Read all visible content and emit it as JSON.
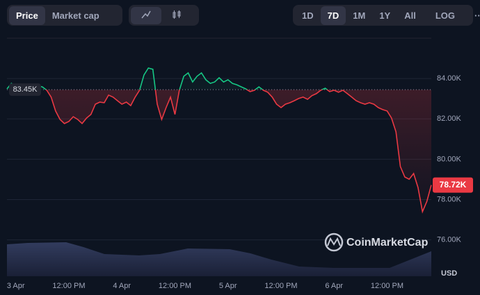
{
  "ui": {
    "tabs": [
      "Price",
      "Market cap"
    ],
    "ranges": [
      "1D",
      "7D",
      "1M",
      "1Y",
      "All"
    ],
    "log": "LOG",
    "more": "···",
    "watermark": "CoinMarketCap",
    "currency": "USD"
  },
  "chart_data": {
    "type": "line",
    "categories": [
      null,
      null,
      "3 Apr",
      null,
      null,
      null,
      null,
      null,
      null,
      null,
      null,
      null,
      null,
      null,
      "12:00 PM",
      null,
      null,
      null,
      null,
      null,
      null,
      null,
      null,
      null,
      null,
      null,
      "4 Apr",
      null,
      null,
      null,
      null,
      null,
      null,
      null,
      null,
      null,
      null,
      null,
      "12:00 PM",
      null,
      null,
      null,
      null,
      null,
      null,
      null,
      null,
      null,
      null,
      null,
      "5 Apr",
      null,
      null,
      null,
      null,
      null,
      null,
      null,
      null,
      null,
      null,
      null,
      "12:00 PM",
      null,
      null,
      null,
      null,
      null,
      null,
      null,
      null,
      null,
      null,
      null,
      "6 Apr",
      null,
      null,
      null,
      null,
      null,
      null,
      null,
      null,
      null,
      null,
      null,
      "12:00 PM",
      null,
      null,
      null,
      null,
      null,
      null,
      null,
      null,
      null,
      null
    ],
    "values": [
      83490,
      83760,
      83590,
      83520,
      83590,
      83520,
      83490,
      83630,
      83590,
      83420,
      83080,
      82390,
      81970,
      81770,
      81870,
      82110,
      81970,
      81770,
      82040,
      82220,
      82730,
      82830,
      82800,
      83180,
      83080,
      82900,
      82730,
      82830,
      82660,
      83080,
      83420,
      84180,
      84520,
      84460,
      82730,
      81970,
      82560,
      83080,
      82220,
      83420,
      84110,
      84280,
      83830,
      84110,
      84280,
      83940,
      83760,
      83830,
      84040,
      83830,
      83940,
      83760,
      83690,
      83590,
      83490,
      83350,
      83420,
      83590,
      83420,
      83320,
      83080,
      82730,
      82560,
      82730,
      82800,
      82900,
      83010,
      83080,
      82970,
      83150,
      83250,
      83420,
      83520,
      83350,
      83420,
      83320,
      83420,
      83250,
      83080,
      82900,
      82800,
      82730,
      82800,
      82730,
      82560,
      82460,
      82390,
      82040,
      81360,
      79640,
      79120,
      79010,
      79290,
      78600,
      77400,
      77910,
      78720
    ],
    "value_labels": [
      null,
      null,
      null,
      null,
      null,
      null,
      null,
      null,
      null,
      null,
      null,
      null,
      null,
      null,
      null,
      null,
      null,
      null,
      null,
      null,
      null,
      null,
      null,
      null,
      null,
      null,
      null,
      null,
      null,
      null,
      null,
      null,
      null,
      null,
      null,
      null,
      null,
      null,
      null,
      null,
      null,
      null,
      null,
      null,
      null,
      null,
      null,
      null,
      null,
      null,
      null,
      null,
      null,
      null,
      null,
      null,
      null,
      null,
      null,
      null,
      null,
      null,
      null,
      null,
      null,
      null,
      null,
      null,
      null,
      null,
      null,
      null,
      null,
      null,
      null,
      null,
      null,
      null,
      null,
      null,
      null,
      null,
      null,
      null,
      null,
      null,
      null,
      null,
      null,
      null,
      null,
      null,
      null,
      null,
      null,
      null,
      "78.72K"
    ],
    "reference": {
      "value": 83450,
      "label": "83.45K"
    },
    "up_color": "#16c784",
    "down_color": "#ea3943",
    "ylim": [
      74200,
      86000
    ],
    "yticks": [
      {
        "value": 76000,
        "label": "76.00K"
      },
      {
        "value": 78000,
        "label": "78.00K"
      },
      {
        "value": 80000,
        "label": "80.00K"
      },
      {
        "value": 82000,
        "label": "82.00K"
      },
      {
        "value": 84000,
        "label": "84.00K"
      }
    ],
    "grid": true
  }
}
